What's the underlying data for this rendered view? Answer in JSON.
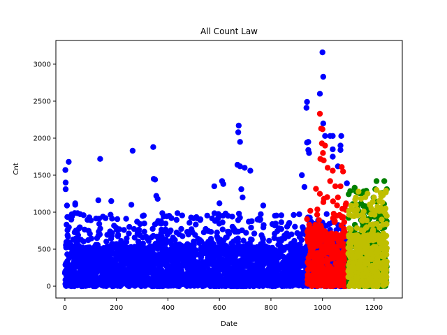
{
  "chart_data": {
    "type": "scatter",
    "title": "All Count Law",
    "xlabel": "Date",
    "ylabel": "Cnt",
    "xlim": [
      -35,
      1310
    ],
    "ylim": [
      -160,
      3320
    ],
    "xticks": [
      0,
      200,
      400,
      600,
      800,
      1000,
      1200
    ],
    "yticks": [
      0,
      500,
      1000,
      1500,
      2000,
      2500,
      3000
    ],
    "grid": false,
    "legend": "none",
    "series": [
      {
        "color": "#0000ff",
        "x_range": [
          0,
          1100
        ],
        "dense_band": [
          0,
          520
        ],
        "points": [
          [
            2,
            1570
          ],
          [
            3,
            1400
          ],
          [
            3,
            1310
          ],
          [
            8,
            1090
          ],
          [
            15,
            1680
          ],
          [
            40,
            1100
          ],
          [
            40,
            1120
          ],
          [
            25,
            900
          ],
          [
            137,
            1720
          ],
          [
            130,
            1160
          ],
          [
            180,
            1150
          ],
          [
            263,
            1830
          ],
          [
            258,
            1100
          ],
          [
            343,
            1880
          ],
          [
            345,
            1450
          ],
          [
            350,
            1440
          ],
          [
            355,
            1220
          ],
          [
            360,
            1180
          ],
          [
            580,
            1350
          ],
          [
            610,
            1420
          ],
          [
            615,
            1380
          ],
          [
            600,
            1120
          ],
          [
            675,
            2170
          ],
          [
            673,
            2080
          ],
          [
            680,
            1950
          ],
          [
            670,
            1640
          ],
          [
            680,
            1620
          ],
          [
            698,
            1600
          ],
          [
            720,
            1560
          ],
          [
            685,
            1310
          ],
          [
            690,
            1200
          ],
          [
            770,
            1090
          ],
          [
            940,
            2490
          ],
          [
            938,
            2410
          ],
          [
            945,
            1950
          ],
          [
            940,
            1940
          ],
          [
            945,
            1840
          ],
          [
            948,
            1800
          ],
          [
            920,
            1500
          ],
          [
            930,
            1340
          ],
          [
            990,
            2600
          ],
          [
            1000,
            3160
          ],
          [
            1003,
            2830
          ],
          [
            1003,
            2200
          ],
          [
            1010,
            2030
          ],
          [
            1030,
            2030
          ],
          [
            1040,
            2030
          ],
          [
            1040,
            1850
          ],
          [
            1073,
            2030
          ],
          [
            1070,
            1900
          ],
          [
            1070,
            1840
          ],
          [
            1040,
            1750
          ],
          [
            1060,
            1620
          ],
          [
            1095,
            1390
          ],
          [
            815,
            820
          ],
          [
            880,
            700
          ]
        ]
      },
      {
        "color": "#ff0000",
        "x_range": [
          940,
          1100
        ],
        "dense_band": [
          0,
          700
        ],
        "points": [
          [
            990,
            2330
          ],
          [
            995,
            2130
          ],
          [
            1000,
            2120
          ],
          [
            998,
            1930
          ],
          [
            1010,
            1900
          ],
          [
            1002,
            1800
          ],
          [
            992,
            1720
          ],
          [
            1005,
            1700
          ],
          [
            1020,
            1600
          ],
          [
            1040,
            1560
          ],
          [
            1075,
            1610
          ],
          [
            1080,
            1550
          ],
          [
            1070,
            1350
          ],
          [
            1050,
            1350
          ],
          [
            1030,
            1420
          ],
          [
            1090,
            1100
          ],
          [
            1060,
            1200
          ]
        ]
      },
      {
        "color": "#008000",
        "x_range": [
          1100,
          1250
        ],
        "dense_band": [
          0,
          700
        ],
        "points": [
          [
            1125,
            1330
          ],
          [
            1130,
            1280
          ],
          [
            1168,
            1260
          ],
          [
            1170,
            1290
          ],
          [
            1210,
            1420
          ],
          [
            1240,
            1420
          ],
          [
            1205,
            1310
          ],
          [
            1230,
            1260
          ],
          [
            1150,
            1120
          ],
          [
            1245,
            880
          ],
          [
            1215,
            970
          ],
          [
            1180,
            1000
          ]
        ]
      },
      {
        "color": "#bfbf00",
        "x_range": [
          1100,
          1250
        ],
        "dense_band": [
          0,
          680
        ],
        "points": [
          [
            1130,
            1200
          ],
          [
            1150,
            1180
          ],
          [
            1175,
            1250
          ],
          [
            1210,
            1300
          ],
          [
            1245,
            1280
          ],
          [
            1235,
            1230
          ],
          [
            1160,
            1010
          ],
          [
            1130,
            1100
          ],
          [
            1200,
            1200
          ],
          [
            1220,
            1150
          ],
          [
            1190,
            1050
          ],
          [
            1245,
            1050
          ],
          [
            1115,
            950
          ],
          [
            1230,
            900
          ]
        ]
      }
    ]
  }
}
